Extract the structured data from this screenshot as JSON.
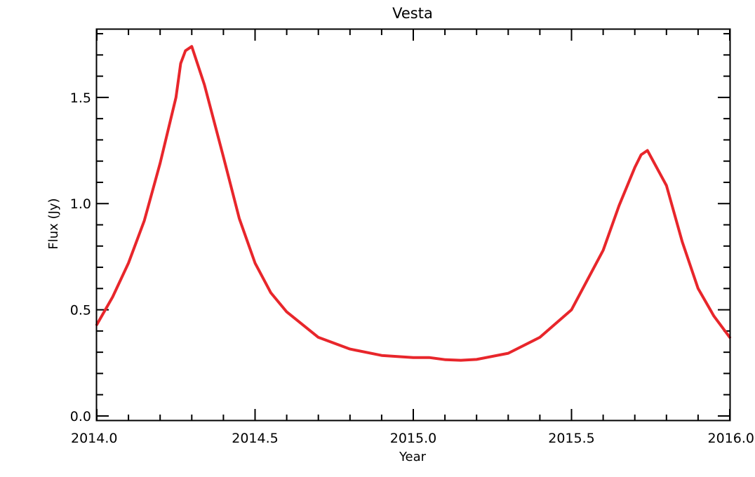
{
  "chart_data": {
    "type": "line",
    "title": "Vesta",
    "xlabel": "Year",
    "ylabel": "Flux (Jy)",
    "xlim": [
      2014.0,
      2016.0
    ],
    "ylim": [
      -0.02,
      1.82
    ],
    "grid": false,
    "x_ticks": [
      {
        "value": 2014.0,
        "label": "2014.0"
      },
      {
        "value": 2014.5,
        "label": "2014.5"
      },
      {
        "value": 2015.0,
        "label": "2015.0"
      },
      {
        "value": 2015.5,
        "label": "2015.5"
      },
      {
        "value": 2016.0,
        "label": "2016.0"
      }
    ],
    "y_ticks": [
      {
        "value": 0.0,
        "label": "0.0"
      },
      {
        "value": 0.5,
        "label": "0.5"
      },
      {
        "value": 1.0,
        "label": "1.0"
      },
      {
        "value": 1.5,
        "label": "1.5"
      }
    ],
    "x_minor_step": 0.1,
    "y_minor_step": 0.1,
    "series": [
      {
        "color": "#e8262b",
        "x": [
          2014.0,
          2014.05,
          2014.1,
          2014.15,
          2014.2,
          2014.25,
          2014.265,
          2014.28,
          2014.3,
          2014.34,
          2014.4,
          2014.45,
          2014.5,
          2014.55,
          2014.6,
          2014.7,
          2014.8,
          2014.9,
          2015.0,
          2015.05,
          2015.1,
          2015.15,
          2015.2,
          2015.3,
          2015.4,
          2015.5,
          2015.6,
          2015.65,
          2015.7,
          2015.72,
          2015.74,
          2015.8,
          2015.85,
          2015.9,
          2015.95,
          2016.0
        ],
        "y": [
          0.43,
          0.56,
          0.72,
          0.92,
          1.19,
          1.5,
          1.66,
          1.72,
          1.74,
          1.56,
          1.22,
          0.93,
          0.72,
          0.58,
          0.49,
          0.37,
          0.315,
          0.285,
          0.275,
          0.275,
          0.265,
          0.262,
          0.266,
          0.295,
          0.37,
          0.5,
          0.78,
          0.99,
          1.17,
          1.23,
          1.25,
          1.085,
          0.82,
          0.6,
          0.47,
          0.37
        ]
      }
    ]
  }
}
